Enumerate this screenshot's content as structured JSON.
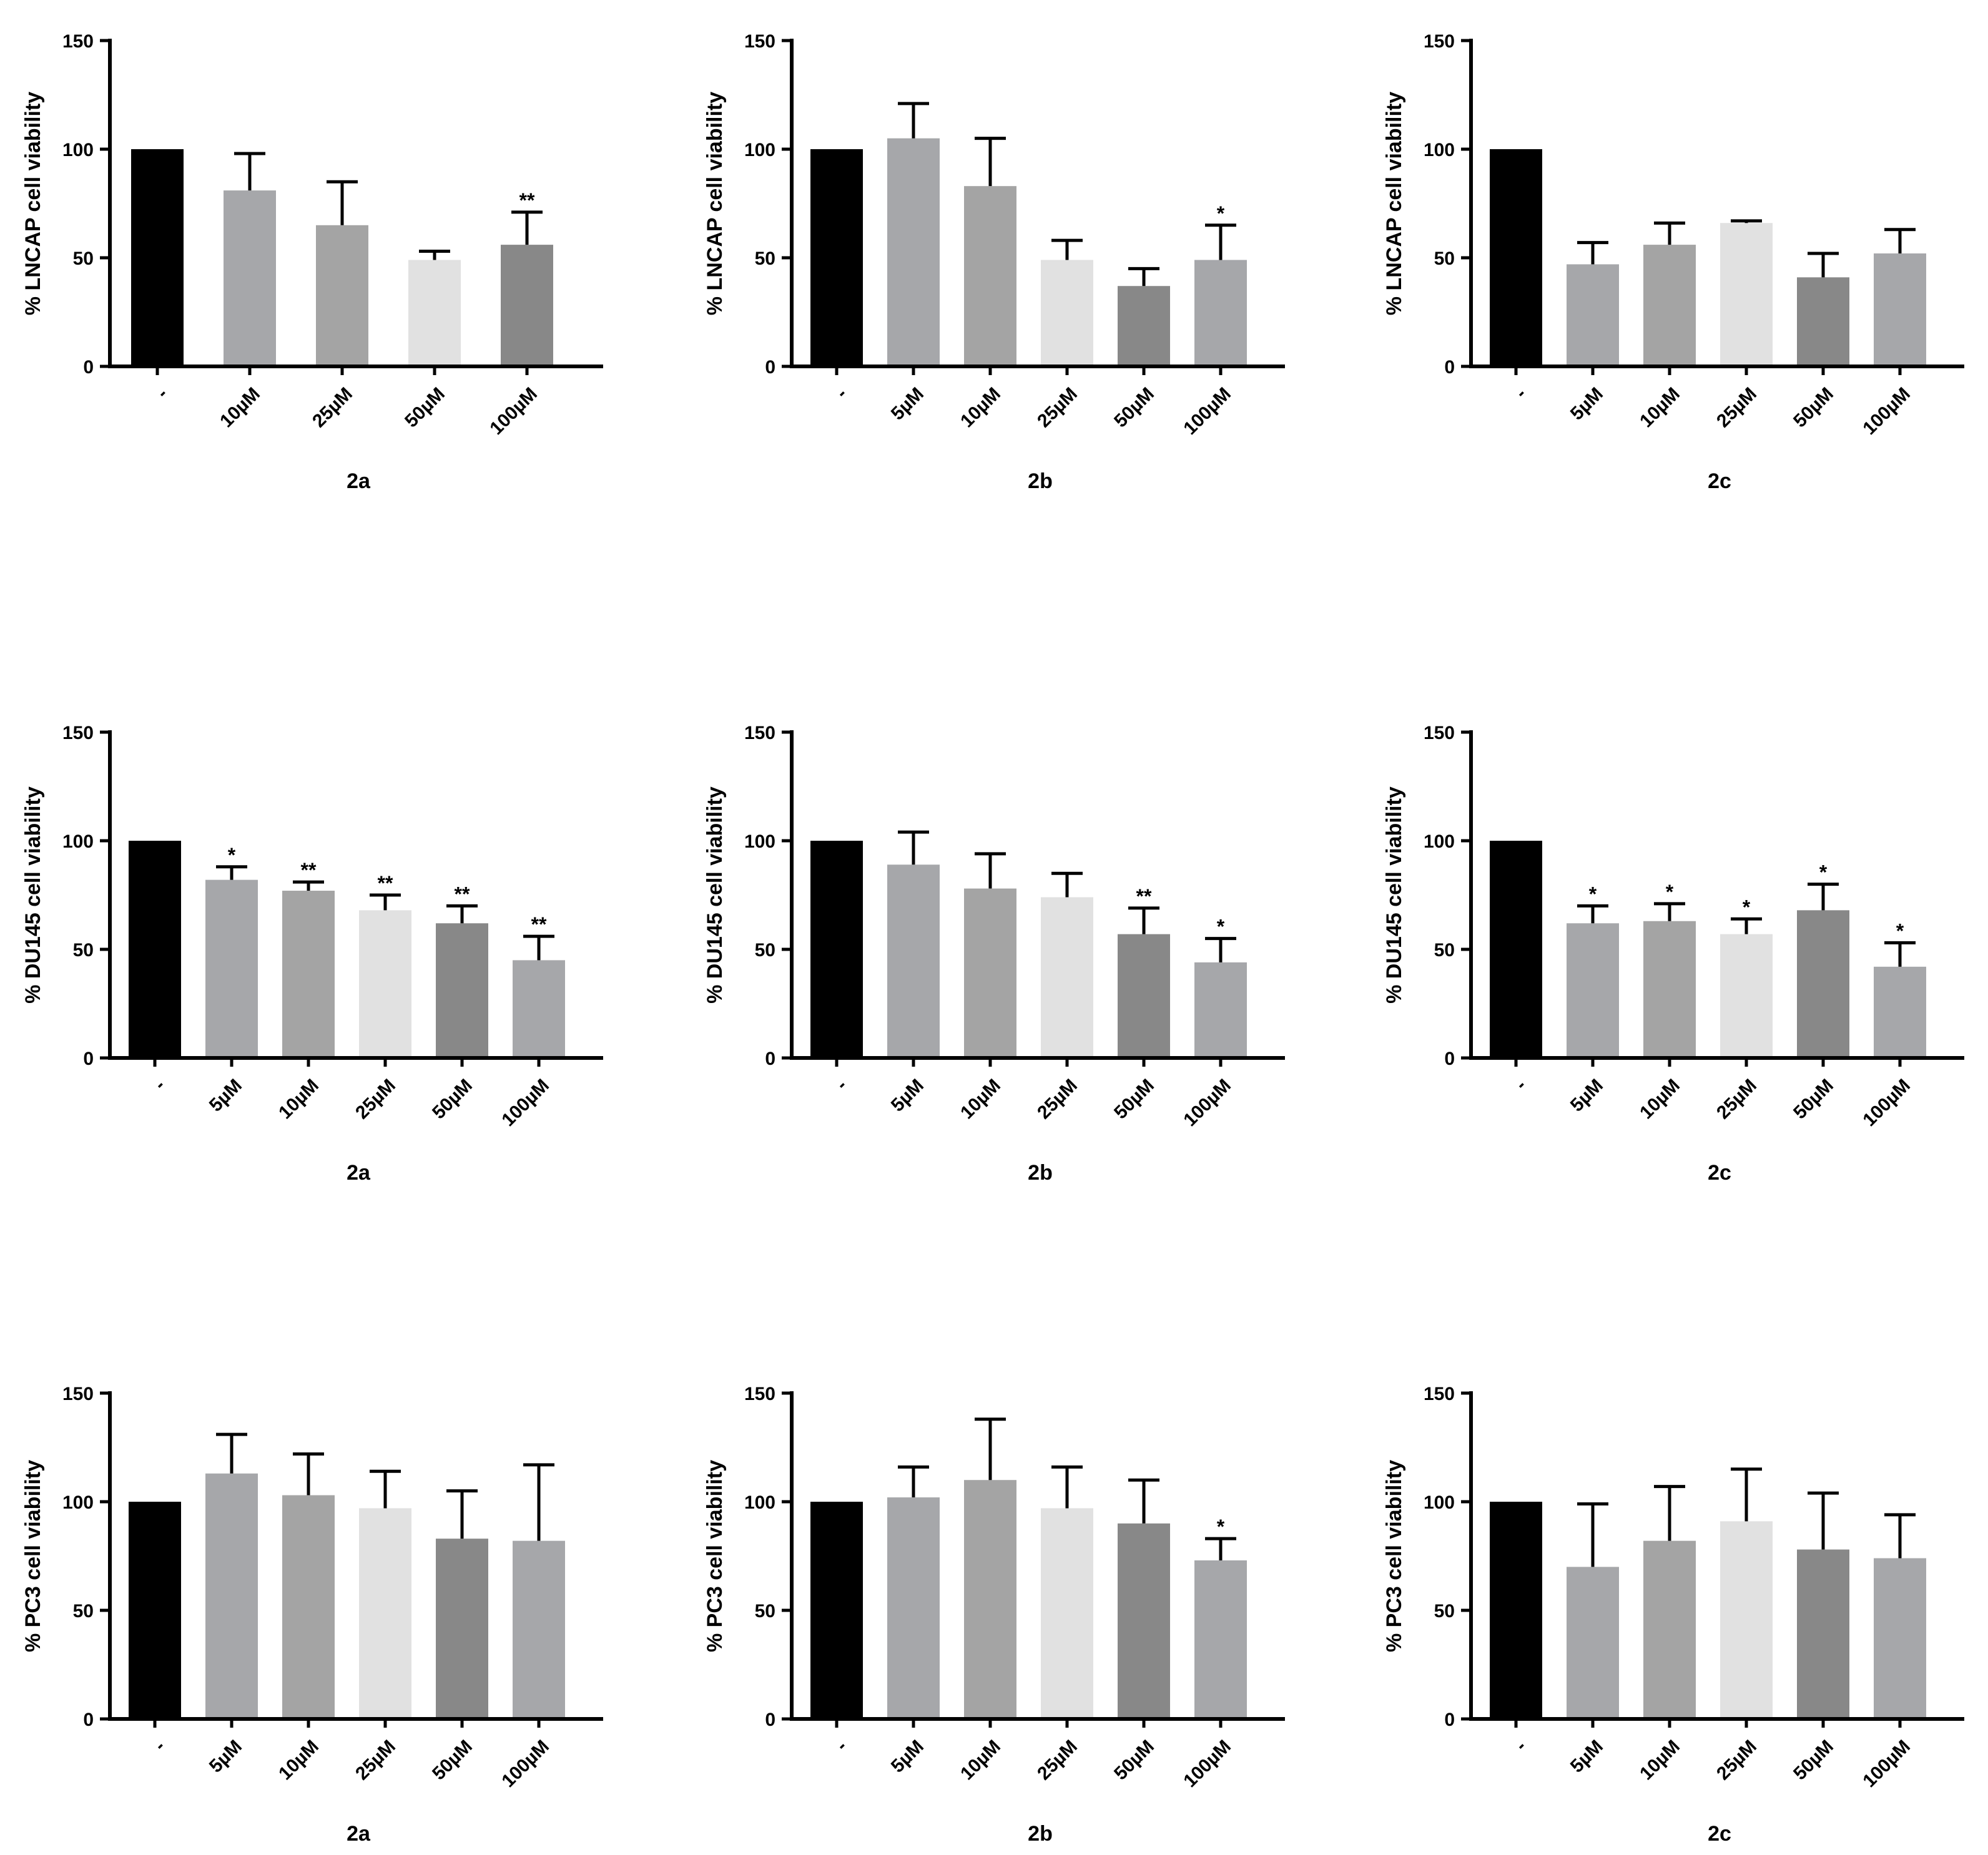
{
  "chart_data": [
    {
      "type": "bar",
      "title": "",
      "xlabel": "2a",
      "ylabel": "% LNCAP cell viability",
      "ylim": [
        0,
        150
      ],
      "yticks": [
        0,
        50,
        100,
        150
      ],
      "grid": false,
      "legend": "none",
      "categories": [
        "-",
        "10µM",
        "25µM",
        "50µM",
        "100µM"
      ],
      "values": [
        100,
        81,
        65,
        49,
        56
      ],
      "errors": [
        0,
        17,
        20,
        4,
        15
      ],
      "significance": [
        "",
        "",
        "",
        "",
        "**"
      ],
      "colors": [
        "#000000",
        "#a6a7aa",
        "#a4a4a4",
        "#e1e1e1",
        "#888888"
      ]
    },
    {
      "type": "bar",
      "title": "",
      "xlabel": "2b",
      "ylabel": "% LNCAP cell viability",
      "ylim": [
        0,
        150
      ],
      "yticks": [
        0,
        50,
        100,
        150
      ],
      "grid": false,
      "legend": "none",
      "categories": [
        "-",
        "5µM",
        "10µM",
        "25µM",
        "50µM",
        "100µM"
      ],
      "values": [
        100,
        105,
        83,
        49,
        37,
        49
      ],
      "errors": [
        0,
        16,
        22,
        9,
        8,
        16
      ],
      "significance": [
        "",
        "",
        "",
        "",
        "",
        "*"
      ],
      "colors": [
        "#000000",
        "#a6a7aa",
        "#a4a4a4",
        "#e1e1e1",
        "#888888",
        "#a6a7aa"
      ]
    },
    {
      "type": "bar",
      "title": "",
      "xlabel": "2c",
      "ylabel": "% LNCAP cell viability",
      "ylim": [
        0,
        150
      ],
      "yticks": [
        0,
        50,
        100,
        150
      ],
      "grid": false,
      "legend": "none",
      "categories": [
        "-",
        "5µM",
        "10µM",
        "25µM",
        "50µM",
        "100µM"
      ],
      "values": [
        100,
        47,
        56,
        66,
        41,
        52
      ],
      "errors": [
        0,
        10,
        10,
        1,
        11,
        11
      ],
      "significance": [
        "",
        "",
        "",
        "",
        "",
        ""
      ],
      "colors": [
        "#000000",
        "#a6a7aa",
        "#a4a4a4",
        "#e1e1e1",
        "#888888",
        "#a6a7aa"
      ]
    },
    {
      "type": "bar",
      "title": "",
      "xlabel": "2a",
      "ylabel": "% DU145 cell viability",
      "ylim": [
        0,
        150
      ],
      "yticks": [
        0,
        50,
        100,
        150
      ],
      "grid": false,
      "legend": "none",
      "categories": [
        "-",
        "5µM",
        "10µM",
        "25µM",
        "50µM",
        "100µM"
      ],
      "values": [
        100,
        82,
        77,
        68,
        62,
        45
      ],
      "errors": [
        0,
        6,
        4,
        7,
        8,
        11
      ],
      "significance": [
        "",
        "*",
        "**",
        "**",
        "**",
        "**"
      ],
      "colors": [
        "#000000",
        "#a6a7aa",
        "#a4a4a4",
        "#e1e1e1",
        "#888888",
        "#a6a7aa"
      ]
    },
    {
      "type": "bar",
      "title": "",
      "xlabel": "2b",
      "ylabel": "% DU145 cell viability",
      "ylim": [
        0,
        150
      ],
      "yticks": [
        0,
        50,
        100,
        150
      ],
      "grid": false,
      "legend": "none",
      "categories": [
        "-",
        "5µM",
        "10µM",
        "25µM",
        "50µM",
        "100µM"
      ],
      "values": [
        100,
        89,
        78,
        74,
        57,
        44
      ],
      "errors": [
        0,
        15,
        16,
        11,
        12,
        11
      ],
      "significance": [
        "",
        "",
        "",
        "",
        "**",
        "*"
      ],
      "colors": [
        "#000000",
        "#a6a7aa",
        "#a4a4a4",
        "#e1e1e1",
        "#888888",
        "#a6a7aa"
      ]
    },
    {
      "type": "bar",
      "title": "",
      "xlabel": "2c",
      "ylabel": "% DU145 cell viability",
      "ylim": [
        0,
        150
      ],
      "yticks": [
        0,
        50,
        100,
        150
      ],
      "grid": false,
      "legend": "none",
      "categories": [
        "-",
        "5µM",
        "10µM",
        "25µM",
        "50µM",
        "100µM"
      ],
      "values": [
        100,
        62,
        63,
        57,
        68,
        42
      ],
      "errors": [
        0,
        8,
        8,
        7,
        12,
        11
      ],
      "significance": [
        "",
        "*",
        "*",
        "*",
        "*",
        "*"
      ],
      "colors": [
        "#000000",
        "#a6a7aa",
        "#a4a4a4",
        "#e1e1e1",
        "#888888",
        "#a6a7aa"
      ]
    },
    {
      "type": "bar",
      "title": "",
      "xlabel": "2a",
      "ylabel": "% PC3 cell viability",
      "ylim": [
        0,
        150
      ],
      "yticks": [
        0,
        50,
        100,
        150
      ],
      "grid": false,
      "legend": "none",
      "categories": [
        "-",
        "5µM",
        "10µM",
        "25µM",
        "50µM",
        "100µM"
      ],
      "values": [
        100,
        113,
        103,
        97,
        83,
        82
      ],
      "errors": [
        0,
        18,
        19,
        17,
        22,
        35
      ],
      "significance": [
        "",
        "",
        "",
        "",
        "",
        ""
      ],
      "colors": [
        "#000000",
        "#a6a7aa",
        "#a4a4a4",
        "#e1e1e1",
        "#888888",
        "#a6a7aa"
      ]
    },
    {
      "type": "bar",
      "title": "",
      "xlabel": "2b",
      "ylabel": "% PC3 cell viability",
      "ylim": [
        0,
        150
      ],
      "yticks": [
        0,
        50,
        100,
        150
      ],
      "grid": false,
      "legend": "none",
      "categories": [
        "-",
        "5µM",
        "10µM",
        "25µM",
        "50µM",
        "100µM"
      ],
      "values": [
        100,
        102,
        110,
        97,
        90,
        73
      ],
      "errors": [
        0,
        14,
        28,
        19,
        20,
        10
      ],
      "significance": [
        "",
        "",
        "",
        "",
        "",
        "*"
      ],
      "colors": [
        "#000000",
        "#a6a7aa",
        "#a4a4a4",
        "#e1e1e1",
        "#888888",
        "#a6a7aa"
      ]
    },
    {
      "type": "bar",
      "title": "",
      "xlabel": "2c",
      "ylabel": "% PC3 cell viability",
      "ylim": [
        0,
        150
      ],
      "yticks": [
        0,
        50,
        100,
        150
      ],
      "grid": false,
      "legend": "none",
      "categories": [
        "-",
        "5µM",
        "10µM",
        "25µM",
        "50µM",
        "100µM"
      ],
      "values": [
        100,
        70,
        82,
        91,
        78,
        74
      ],
      "errors": [
        0,
        29,
        25,
        24,
        26,
        20
      ],
      "significance": [
        "",
        "",
        "",
        "",
        "",
        ""
      ],
      "colors": [
        "#000000",
        "#a6a7aa",
        "#a4a4a4",
        "#e1e1e1",
        "#888888",
        "#a6a7aa"
      ]
    }
  ]
}
